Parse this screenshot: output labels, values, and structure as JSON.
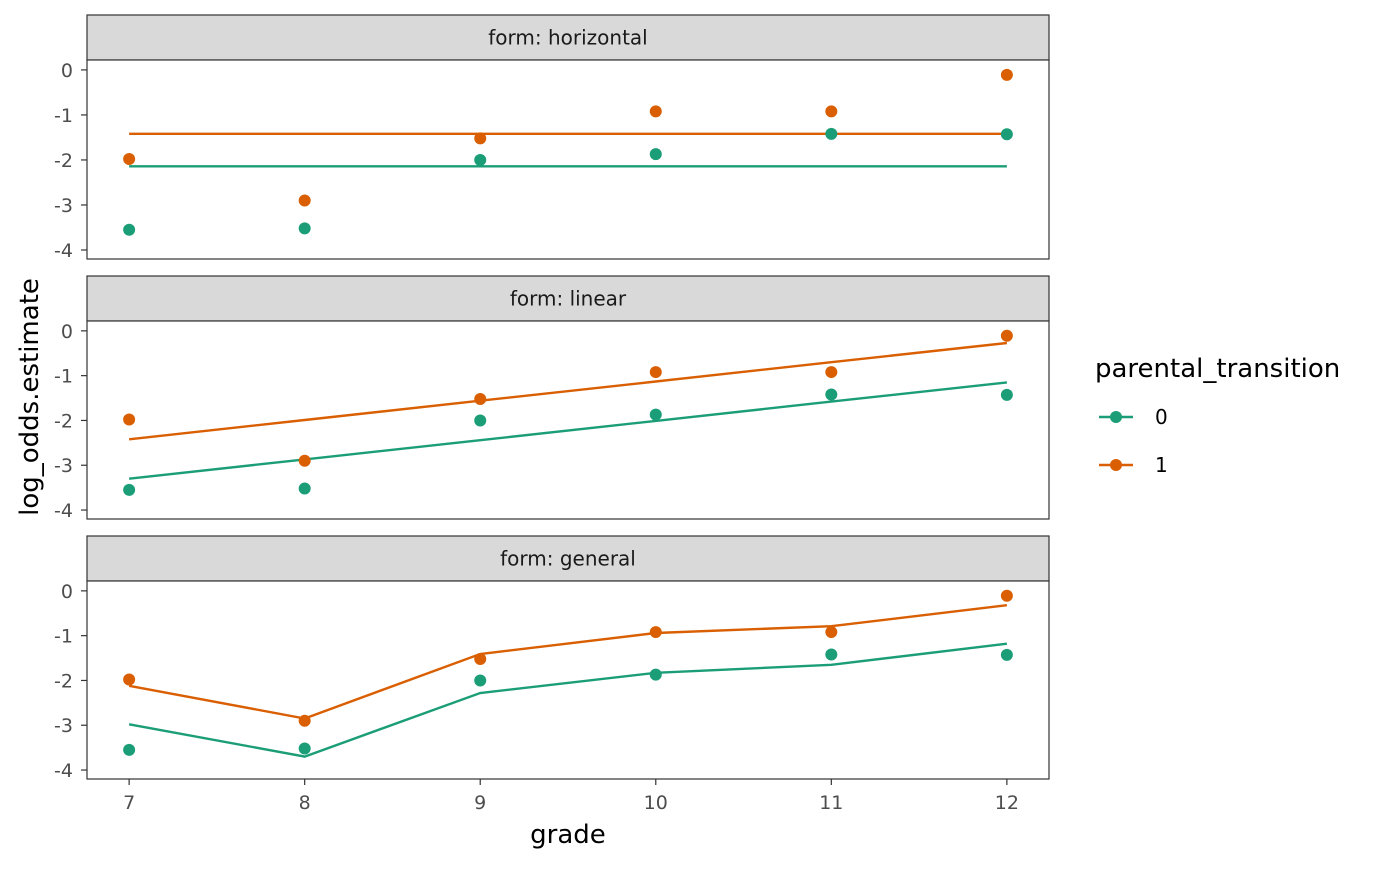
{
  "chart_data": {
    "type": "line",
    "xlabel": "grade",
    "ylabel": "log_odds.estimate",
    "x": [
      7,
      8,
      9,
      10,
      11,
      12
    ],
    "xlim": [
      6.76,
      12.24
    ],
    "ylim": [
      -4.2,
      0.22
    ],
    "x_ticks": [
      "7",
      "8",
      "9",
      "10",
      "11",
      "12"
    ],
    "y_ticks": [
      {
        "value": 0,
        "label": "0"
      },
      {
        "value": -1,
        "label": "-1"
      },
      {
        "value": -2,
        "label": "-2"
      },
      {
        "value": -3,
        "label": "-3"
      },
      {
        "value": -4,
        "label": "-4"
      }
    ],
    "grid": false,
    "legend": {
      "title": "parental_transition",
      "position": "right",
      "entries": [
        {
          "label": "0",
          "color": "#1b9e77"
        },
        {
          "label": "1",
          "color": "#d95f02"
        }
      ]
    },
    "observed_points": [
      {
        "name": "0",
        "color": "#1b9e77",
        "values": [
          -3.55,
          -3.52,
          -2.0,
          -1.87,
          -1.42,
          -1.43
        ]
      },
      {
        "name": "1",
        "color": "#d95f02",
        "values": [
          -1.98,
          -2.9,
          -1.52,
          -0.92,
          -0.92,
          -0.11
        ]
      }
    ],
    "panels": [
      {
        "strip": "form: horizontal",
        "fitted": [
          {
            "name": "0",
            "color": "#1b9e77",
            "values": [
              -2.14,
              -2.14,
              -2.14,
              -2.14,
              -2.14,
              -2.14
            ]
          },
          {
            "name": "1",
            "color": "#d95f02",
            "values": [
              -1.42,
              -1.42,
              -1.42,
              -1.42,
              -1.42,
              -1.42
            ]
          }
        ]
      },
      {
        "strip": "form: linear",
        "fitted": [
          {
            "name": "0",
            "color": "#1b9e77",
            "values": [
              -3.3,
              -2.87,
              -2.44,
              -2.01,
              -1.58,
              -1.15
            ]
          },
          {
            "name": "1",
            "color": "#d95f02",
            "values": [
              -2.42,
              -1.99,
              -1.56,
              -1.13,
              -0.7,
              -0.27
            ]
          }
        ]
      },
      {
        "strip": "form: general",
        "fitted": [
          {
            "name": "0",
            "color": "#1b9e77",
            "values": [
              -2.98,
              -3.7,
              -2.28,
              -1.83,
              -1.65,
              -1.18
            ]
          },
          {
            "name": "1",
            "color": "#d95f02",
            "values": [
              -2.12,
              -2.85,
              -1.41,
              -0.94,
              -0.79,
              -0.32
            ]
          }
        ]
      }
    ]
  }
}
